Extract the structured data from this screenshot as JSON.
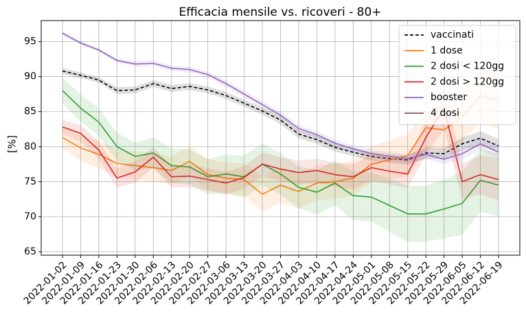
{
  "chart_data": {
    "type": "line",
    "title": "Efficacia mensile vs. ricoveri - 80+",
    "ylabel": "[%]",
    "categories": [
      "2022-01-02",
      "2022-01-09",
      "2022-01-16",
      "2022-01-23",
      "2022-01-30",
      "2022-02-06",
      "2022-02-13",
      "2022-02-20",
      "2022-02-27",
      "2022-03-06",
      "2022-03-13",
      "2022-03-20",
      "2022-03-27",
      "2022-04-03",
      "2022-04-10",
      "2022-04-17",
      "2022-04-24",
      "2022-05-01",
      "2022-05-08",
      "2022-05-15",
      "2022-05-22",
      "2022-05-29",
      "2022-06-05",
      "2022-06-12",
      "2022-06-19"
    ],
    "ylim": [
      64.5,
      98
    ],
    "yticks": [
      65,
      70,
      75,
      80,
      85,
      90,
      95
    ],
    "grid": true,
    "legend": "upper right",
    "series": [
      {
        "name": "vaccinati",
        "color": "#000000",
        "dashed": true,
        "values": [
          90.8,
          90.2,
          89.5,
          88.0,
          88.1,
          89.0,
          88.3,
          88.6,
          88.1,
          87.3,
          86.2,
          85.1,
          83.8,
          81.8,
          81.0,
          79.9,
          79.2,
          78.6,
          78.3,
          78.1,
          79.1,
          79.0,
          80.4,
          81.2,
          80.1
        ],
        "ci": [
          0.4,
          0.4,
          0.4,
          0.5,
          0.5,
          0.5,
          0.5,
          0.5,
          0.5,
          0.5,
          0.5,
          0.5,
          0.6,
          0.6,
          0.6,
          0.6,
          0.6,
          0.6,
          0.6,
          0.7,
          0.8,
          0.8,
          0.9,
          1.0,
          1.0
        ]
      },
      {
        "name": "1 dose",
        "color": "#ff7f0e",
        "values": [
          81.3,
          79.8,
          78.9,
          77.6,
          77.3,
          77.0,
          76.6,
          77.9,
          76.0,
          75.5,
          75.3,
          73.2,
          74.5,
          73.6,
          74.8,
          75.0,
          75.5,
          77.5,
          78.1,
          78.7,
          82.7,
          82.4,
          84.2,
          87.3,
          86.5
        ],
        "ci": [
          1.5,
          1.8,
          2.0,
          2.0,
          2.0,
          2.0,
          2.0,
          2.2,
          2.2,
          2.2,
          2.3,
          2.5,
          2.5,
          2.5,
          2.5,
          2.5,
          2.5,
          2.6,
          2.8,
          3.0,
          3.0,
          3.2,
          3.5,
          3.8,
          4.0
        ]
      },
      {
        "name": "2 dosi < 120gg",
        "color": "#2ca02c",
        "values": [
          88.0,
          85.5,
          83.5,
          80.0,
          78.6,
          79.1,
          77.3,
          77.1,
          75.7,
          76.1,
          75.7,
          77.5,
          76.1,
          74.2,
          73.5,
          74.8,
          73.0,
          72.8,
          71.6,
          70.4,
          70.4,
          71.1,
          71.9,
          75.2,
          74.5
        ],
        "ci": [
          1.8,
          2.0,
          2.0,
          2.0,
          2.0,
          2.2,
          2.5,
          2.5,
          2.5,
          2.8,
          3.0,
          3.0,
          3.0,
          3.0,
          3.2,
          3.2,
          3.5,
          3.5,
          3.8,
          4.0,
          4.0,
          4.2,
          4.5,
          4.5,
          4.5
        ]
      },
      {
        "name": "2 dosi > 120gg",
        "color": "#d62728",
        "values": [
          82.8,
          81.9,
          79.5,
          75.5,
          76.4,
          78.5,
          75.7,
          75.8,
          75.3,
          74.8,
          75.6,
          77.5,
          76.8,
          76.3,
          76.6,
          76.0,
          75.7,
          77.0,
          76.5,
          76.1,
          81.3,
          85.5,
          75.0,
          76.0,
          75.3
        ],
        "ci": [
          1.0,
          1.2,
          1.3,
          1.4,
          1.5,
          1.5,
          1.5,
          1.6,
          1.6,
          1.6,
          1.6,
          1.7,
          1.7,
          1.7,
          1.7,
          1.7,
          1.8,
          1.8,
          1.9,
          2.0,
          2.5,
          3.0,
          2.5,
          2.8,
          3.0
        ]
      },
      {
        "name": "booster",
        "color": "#9467bd",
        "values": [
          96.2,
          94.8,
          93.8,
          92.3,
          91.8,
          91.9,
          91.2,
          91.0,
          90.3,
          89.0,
          87.5,
          86.0,
          84.5,
          82.6,
          81.7,
          80.5,
          79.7,
          79.0,
          78.6,
          78.3,
          78.9,
          78.2,
          79.0,
          80.4,
          79.2
        ],
        "ci": [
          0.3,
          0.3,
          0.3,
          0.3,
          0.4,
          0.4,
          0.4,
          0.4,
          0.4,
          0.5,
          0.5,
          0.5,
          0.5,
          0.5,
          0.5,
          0.5,
          0.5,
          0.6,
          0.6,
          0.6,
          0.7,
          0.7,
          0.8,
          0.9,
          1.0
        ]
      },
      {
        "name": "4 dosi",
        "color": "#8c564b",
        "values": [
          null,
          null,
          null,
          null,
          null,
          null,
          null,
          null,
          null,
          null,
          null,
          null,
          null,
          null,
          null,
          null,
          null,
          null,
          null,
          null,
          null,
          null,
          null,
          null,
          null
        ]
      }
    ]
  }
}
